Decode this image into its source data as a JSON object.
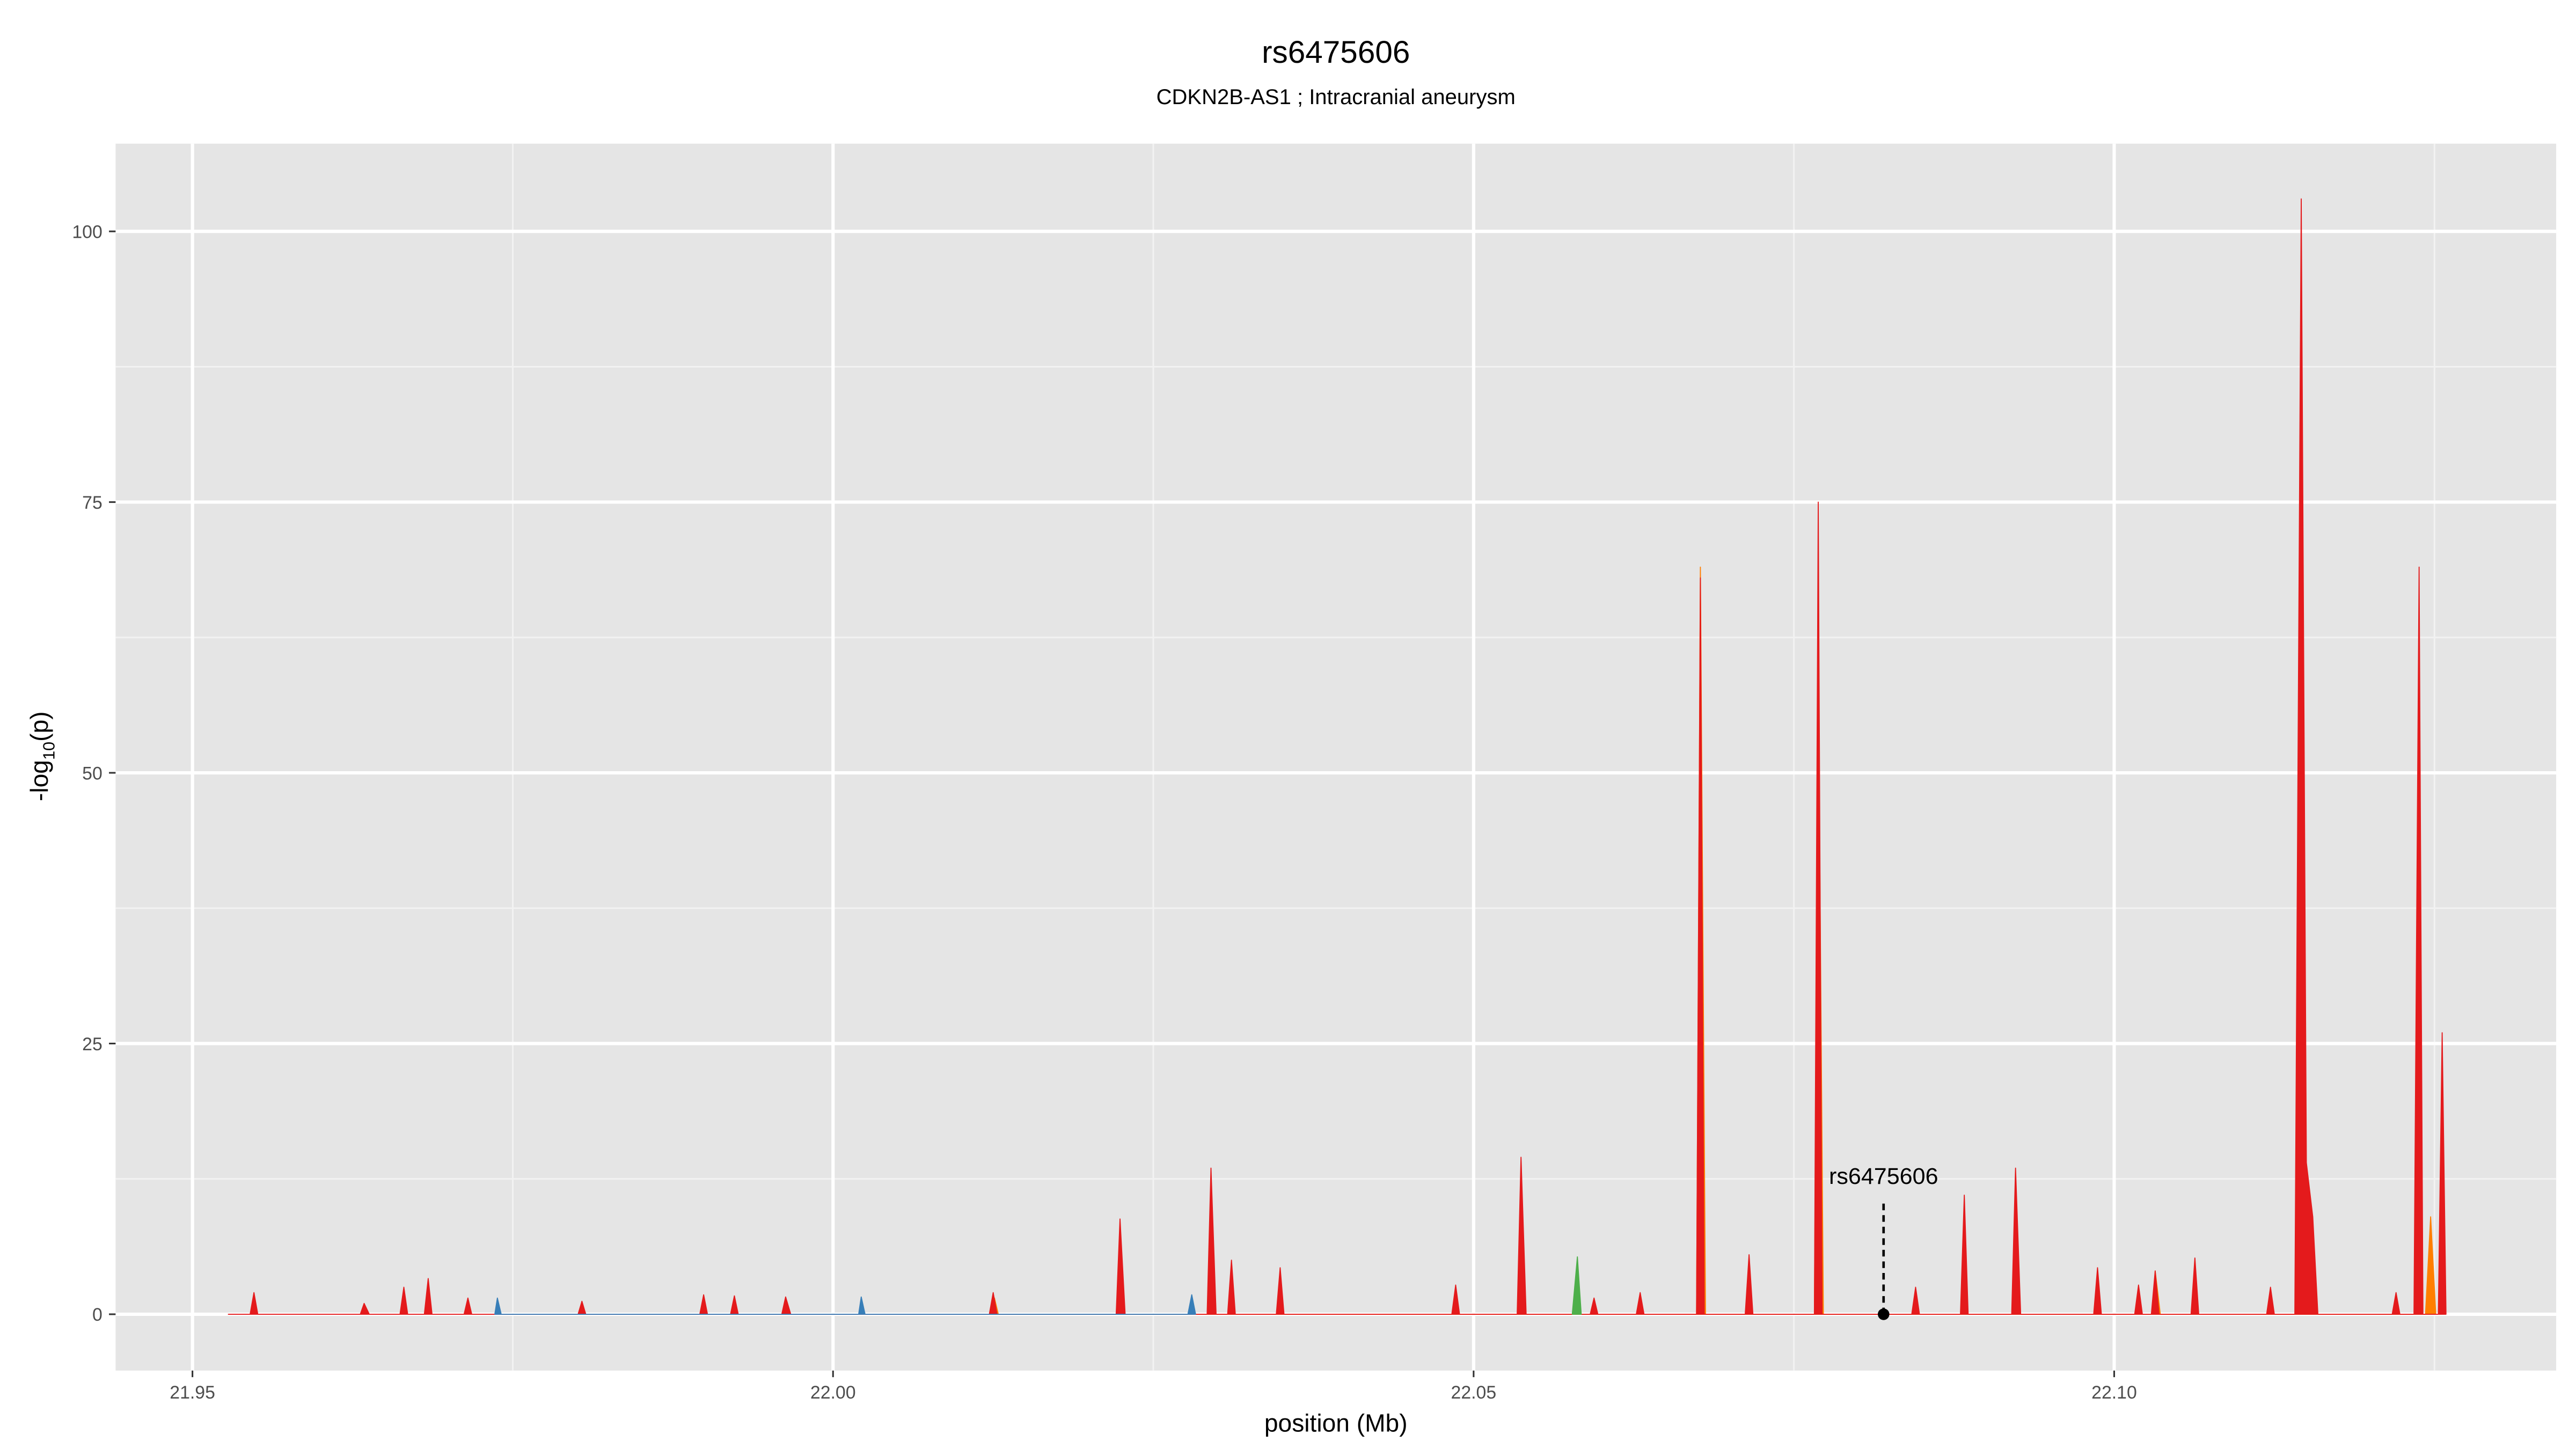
{
  "chart_data": {
    "type": "area",
    "title": "rs6475606",
    "subtitle": "CDKN2B-AS1 ; Intracranial aneurysm",
    "x_label": "position (Mb)",
    "y_label_parts": [
      "-log",
      "10",
      "(p)"
    ],
    "xlim": [
      21.944,
      22.1345
    ],
    "ylim": [
      -5.2,
      108.1
    ],
    "xticks": [
      21.95,
      {
        "value": 22,
        "label": "22.00"
      },
      22.05,
      {
        "value": 22.1,
        "label": "22.10"
      }
    ],
    "yticks": [
      0,
      25,
      50,
      75,
      100
    ],
    "xminorticks": [
      21.975,
      22.025,
      22.075,
      22.125
    ],
    "yminorticks": [
      12.5,
      37.5,
      62.5,
      87.5
    ],
    "grid": true,
    "series": [
      {
        "color": "#ff7f00",
        "x": [
          22.0674,
          22.0677,
          22.0681,
          22.0766,
          22.0769,
          22.0773,
          22.103,
          22.1032,
          22.1036,
          22.1243,
          22.1247,
          22.1251,
          22.0122,
          22.0126,
          22.0129
        ],
        "values": [
          0,
          69,
          0,
          0,
          60,
          0,
          0,
          4,
          0,
          0,
          9,
          0,
          0,
          1.5,
          0
        ]
      },
      {
        "color": "#e41a1c",
        "x": [
          21.9528,
          21.9545,
          21.9548,
          21.9551,
          21.9631,
          21.9634,
          21.9638,
          21.9662,
          21.9665,
          21.9668,
          21.9681,
          21.9684,
          21.9687,
          21.9712,
          21.9715,
          21.9718,
          21.9801,
          21.9804,
          21.9807,
          21.9896,
          21.9899,
          21.9902,
          21.992,
          21.9923,
          21.9926,
          21.996,
          21.9963,
          21.9967,
          22.0122,
          22.0125,
          22.0128,
          22.0221,
          22.0224,
          22.0228,
          22.0292,
          22.0295,
          22.0299,
          22.0308,
          22.0311,
          22.0314,
          22.0346,
          22.0349,
          22.0352,
          22.0483,
          22.0486,
          22.0489,
          22.0534,
          22.0537,
          22.0541,
          22.0591,
          22.0594,
          22.0597,
          22.0627,
          22.063,
          22.0633,
          22.0674,
          22.0677,
          22.068,
          22.0712,
          22.0715,
          22.0718,
          22.0766,
          22.0769,
          22.0772,
          22.0842,
          22.0845,
          22.0848,
          22.088,
          22.0883,
          22.0886,
          22.092,
          22.0923,
          22.0927,
          22.0984,
          22.0987,
          22.099,
          22.1016,
          22.1019,
          22.1022,
          22.1029,
          22.1032,
          22.1035,
          22.106,
          22.1063,
          22.1066,
          22.1119,
          22.1122,
          22.1125,
          22.1141,
          22.1146,
          22.115,
          22.1155,
          22.1159,
          22.1217,
          22.122,
          22.1223,
          22.1234,
          22.1238,
          22.1241,
          22.1253,
          22.1256,
          22.1259
        ],
        "values": [
          0,
          0,
          2,
          0,
          0,
          1,
          0,
          0,
          2.5,
          0,
          0,
          3.3,
          0,
          0,
          1.5,
          0,
          0,
          1.2,
          0,
          0,
          1.8,
          0,
          0,
          1.7,
          0,
          0,
          1.6,
          0,
          0,
          2,
          0,
          0,
          8.8,
          0,
          0,
          13.5,
          0,
          0,
          5,
          0,
          0,
          4.3,
          0,
          0,
          2.7,
          0,
          0,
          14.5,
          0,
          0,
          1.5,
          0,
          0,
          2,
          0,
          0,
          68,
          0,
          0,
          5.5,
          0,
          0,
          75,
          0,
          0,
          2.5,
          0,
          0,
          11,
          0,
          0,
          13.5,
          0,
          0,
          4.3,
          0,
          0,
          2.7,
          0,
          0,
          4,
          0,
          0,
          5.2,
          0,
          0,
          2.5,
          0,
          0,
          103,
          14,
          9,
          0,
          0,
          2,
          0,
          0,
          69,
          0,
          0,
          26,
          0
        ]
      },
      {
        "color": "#4daf4a",
        "x": [
          22.0577,
          22.0581,
          22.0584
        ],
        "values": [
          0,
          5.3,
          0
        ]
      },
      {
        "color": "#377eb8",
        "x": [
          21.9736,
          21.9738,
          21.9741,
          22.002,
          22.0022,
          22.0025,
          22.0277,
          22.028,
          22.0283
        ],
        "values": [
          0,
          1.5,
          0,
          0,
          1.6,
          0,
          0,
          1.8,
          0
        ]
      }
    ],
    "annotation": {
      "label": "rs6475606",
      "x": 22.082,
      "y": 0
    }
  }
}
